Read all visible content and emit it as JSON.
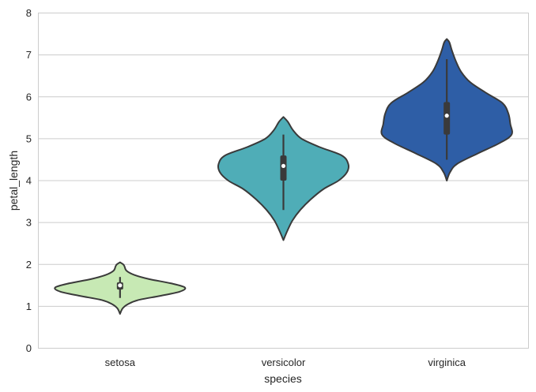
{
  "chart_data": {
    "type": "violin",
    "title": "",
    "xlabel": "species",
    "ylabel": "petal_length",
    "ylim": [
      0,
      8
    ],
    "yticks": [
      0,
      1,
      2,
      3,
      4,
      5,
      6,
      7,
      8
    ],
    "grid": "horizontal",
    "legend": "none",
    "categories": [
      "setosa",
      "versicolor",
      "virginica"
    ],
    "series": [
      {
        "category": "setosa",
        "color": "#c7e9b4",
        "min": 1.0,
        "q1": 1.4,
        "median": 1.5,
        "q3": 1.575,
        "max": 1.9,
        "whisker_low": 1.2,
        "whisker_high": 1.7,
        "density_top": 2.05,
        "density_bottom": 0.82,
        "profile": [
          [
            0.82,
            0.0
          ],
          [
            0.95,
            0.04
          ],
          [
            1.05,
            0.12
          ],
          [
            1.15,
            0.28
          ],
          [
            1.25,
            0.62
          ],
          [
            1.35,
            0.92
          ],
          [
            1.45,
            1.0
          ],
          [
            1.55,
            0.78
          ],
          [
            1.65,
            0.45
          ],
          [
            1.75,
            0.22
          ],
          [
            1.85,
            0.1
          ],
          [
            1.95,
            0.07
          ],
          [
            2.0,
            0.05
          ],
          [
            2.05,
            0.0
          ]
        ]
      },
      {
        "category": "versicolor",
        "color": "#4fadb7",
        "min": 3.0,
        "q1": 4.0,
        "median": 4.35,
        "q3": 4.6,
        "max": 5.1,
        "whisker_low": 3.3,
        "whisker_high": 5.1,
        "density_top": 5.52,
        "density_bottom": 2.58,
        "profile": [
          [
            2.58,
            0.0
          ],
          [
            2.8,
            0.06
          ],
          [
            3.05,
            0.14
          ],
          [
            3.3,
            0.26
          ],
          [
            3.55,
            0.42
          ],
          [
            3.8,
            0.62
          ],
          [
            4.0,
            0.85
          ],
          [
            4.2,
            0.98
          ],
          [
            4.4,
            1.0
          ],
          [
            4.6,
            0.9
          ],
          [
            4.8,
            0.56
          ],
          [
            5.0,
            0.28
          ],
          [
            5.2,
            0.15
          ],
          [
            5.4,
            0.07
          ],
          [
            5.52,
            0.0
          ]
        ]
      },
      {
        "category": "virginica",
        "color": "#2e5ea6",
        "min": 4.5,
        "q1": 5.1,
        "median": 5.55,
        "q3": 5.875,
        "max": 6.9,
        "whisker_low": 4.5,
        "whisker_high": 6.9,
        "density_top": 7.38,
        "density_bottom": 4.0,
        "profile": [
          [
            4.0,
            0.0
          ],
          [
            4.2,
            0.05
          ],
          [
            4.4,
            0.16
          ],
          [
            4.65,
            0.48
          ],
          [
            4.9,
            0.82
          ],
          [
            5.1,
            1.0
          ],
          [
            5.35,
            0.98
          ],
          [
            5.6,
            0.95
          ],
          [
            5.85,
            0.86
          ],
          [
            6.1,
            0.6
          ],
          [
            6.35,
            0.36
          ],
          [
            6.6,
            0.22
          ],
          [
            6.85,
            0.14
          ],
          [
            7.1,
            0.08
          ],
          [
            7.3,
            0.04
          ],
          [
            7.38,
            0.0
          ]
        ]
      }
    ]
  }
}
